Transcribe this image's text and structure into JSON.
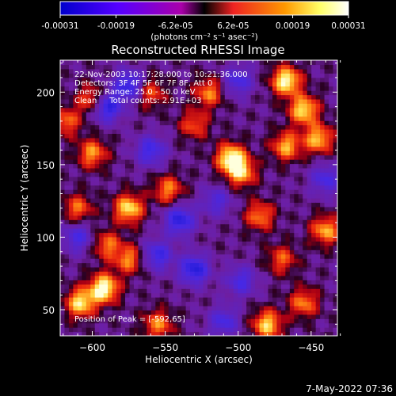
{
  "colorbar": {
    "tick_labels": [
      "-0.00031",
      "-0.00019",
      "-6.2e-05",
      "6.2e-05",
      "0.00019",
      "0.00031"
    ],
    "tick_values": [
      -0.00031,
      -0.00019,
      -6.2e-05,
      6.2e-05,
      0.00019,
      0.00031
    ],
    "range": [
      -0.00031,
      0.00031
    ],
    "unit_label": "(photons cm⁻² s⁻¹ asec⁻²)",
    "colors": [
      "#0000cc",
      "#5500ff",
      "#aa00aa",
      "#ee2222",
      "#ff9900",
      "#ffff66",
      "#ffffff"
    ]
  },
  "chart_data": {
    "type": "heatmap",
    "title": "Reconstructed RHESSI Image",
    "xlabel": "Heliocentric X (arcsec)",
    "ylabel": "Heliocentric Y (arcsec)",
    "xlim": [
      -622,
      -432
    ],
    "ylim": [
      32,
      222
    ],
    "x_ticks": [
      -600,
      -550,
      -500,
      -450
    ],
    "y_ticks": [
      50,
      100,
      150,
      200
    ],
    "annotations": [
      "22-Nov-2003 10:17:28.000 to 10:21:36.000",
      "Detectors: 3F 4F 5F 6F 7F 8F, Att 0",
      "Energy Range: 25.0 - 50.0 keV",
      "Clean     Total counts: 2.91E+03"
    ],
    "peak_label": "Position of Peak = [-592,65]",
    "bright_sources": [
      {
        "x": -592,
        "y": 65,
        "level": 1.0
      },
      {
        "x": -608,
        "y": 55,
        "level": 0.85
      },
      {
        "x": -467,
        "y": 208,
        "level": 0.95
      },
      {
        "x": -455,
        "y": 188,
        "level": 0.85
      },
      {
        "x": -505,
        "y": 155,
        "level": 0.9
      },
      {
        "x": -498,
        "y": 145,
        "level": 0.75
      },
      {
        "x": -575,
        "y": 120,
        "level": 0.85
      },
      {
        "x": -548,
        "y": 133,
        "level": 0.6
      },
      {
        "x": -467,
        "y": 163,
        "level": 0.7
      },
      {
        "x": -445,
        "y": 168,
        "level": 0.75
      },
      {
        "x": -480,
        "y": 40,
        "level": 0.8
      },
      {
        "x": -455,
        "y": 55,
        "level": 0.6
      },
      {
        "x": -485,
        "y": 115,
        "level": 0.6
      },
      {
        "x": -440,
        "y": 105,
        "level": 0.7
      },
      {
        "x": -555,
        "y": 40,
        "level": 0.6
      },
      {
        "x": -600,
        "y": 195,
        "level": 0.6
      },
      {
        "x": -600,
        "y": 158,
        "level": 0.65
      },
      {
        "x": -618,
        "y": 180,
        "level": 0.55
      },
      {
        "x": -520,
        "y": 200,
        "level": 0.6
      },
      {
        "x": -530,
        "y": 178,
        "level": 0.5
      },
      {
        "x": -560,
        "y": 200,
        "level": 0.5
      },
      {
        "x": -575,
        "y": 85,
        "level": 0.6
      },
      {
        "x": -610,
        "y": 120,
        "level": 0.55
      },
      {
        "x": -470,
        "y": 85,
        "level": 0.5
      },
      {
        "x": -590,
        "y": 95,
        "level": 0.55
      }
    ],
    "dark_sources": [
      {
        "x": -590,
        "y": 190,
        "level": -0.9
      },
      {
        "x": -575,
        "y": 205,
        "level": -0.8
      },
      {
        "x": -540,
        "y": 112,
        "level": -0.85
      },
      {
        "x": -530,
        "y": 78,
        "level": -0.9
      },
      {
        "x": -555,
        "y": 88,
        "level": -0.7
      },
      {
        "x": -560,
        "y": 160,
        "level": -0.7
      },
      {
        "x": -500,
        "y": 208,
        "level": -0.6
      },
      {
        "x": -498,
        "y": 70,
        "level": -0.6
      },
      {
        "x": -610,
        "y": 100,
        "level": -0.6
      },
      {
        "x": -440,
        "y": 140,
        "level": -0.6
      },
      {
        "x": -515,
        "y": 125,
        "level": -0.5
      },
      {
        "x": -510,
        "y": 42,
        "level": -0.6
      }
    ]
  },
  "footer": {
    "timestamp": "7-May-2022 07:36"
  }
}
